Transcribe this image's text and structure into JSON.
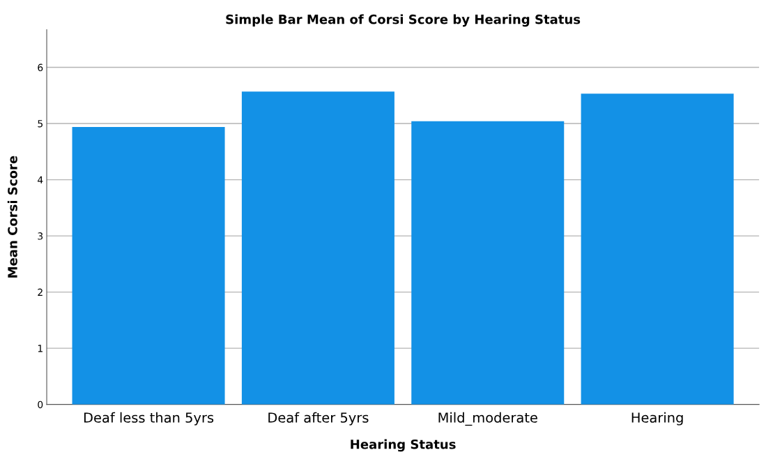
{
  "chart_data": {
    "type": "bar",
    "title": "Simple Bar Mean of Corsi Score by Hearing Status",
    "xlabel": "Hearing Status",
    "ylabel": "Mean Corsi Score",
    "categories": [
      "Deaf less than 5yrs",
      "Deaf after 5yrs",
      "Mild_moderate",
      "Hearing"
    ],
    "values": [
      4.94,
      5.57,
      5.04,
      5.53
    ],
    "color": "#1391e6",
    "ylim": [
      0,
      6.67
    ],
    "yticks": [
      0,
      1,
      2,
      3,
      4,
      5,
      6
    ],
    "grid": "y"
  }
}
